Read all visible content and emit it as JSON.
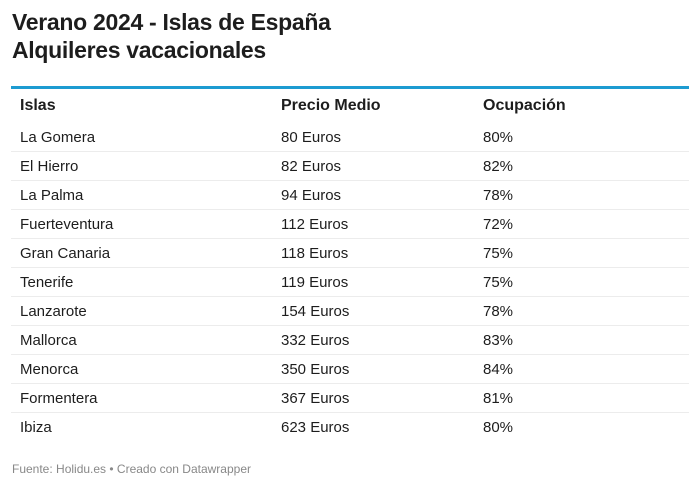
{
  "title_line1": "Verano 2024 - Islas de España",
  "title_line2": "Alquileres vacacionales",
  "accent_color": "#1d9bd1",
  "table": {
    "headers": [
      "Islas",
      "Precio Medio",
      "Ocupación"
    ],
    "rows": [
      [
        "La Gomera",
        "80 Euros",
        "80%"
      ],
      [
        "El Hierro",
        "82 Euros",
        "82%"
      ],
      [
        "La Palma",
        "94 Euros",
        "78%"
      ],
      [
        "Fuerteventura",
        "112 Euros",
        "72%"
      ],
      [
        "Gran Canaria",
        "118 Euros",
        "75%"
      ],
      [
        "Tenerife",
        "119 Euros",
        "75%"
      ],
      [
        "Lanzarote",
        "154 Euros",
        "78%"
      ],
      [
        "Mallorca",
        "332 Euros",
        "83%"
      ],
      [
        "Menorca",
        "350 Euros",
        "84%"
      ],
      [
        "Formentera",
        "367 Euros",
        "81%"
      ],
      [
        "Ibiza",
        "623 Euros",
        "80%"
      ]
    ]
  },
  "footer": "Fuente: Holidu.es • Creado con Datawrapper"
}
